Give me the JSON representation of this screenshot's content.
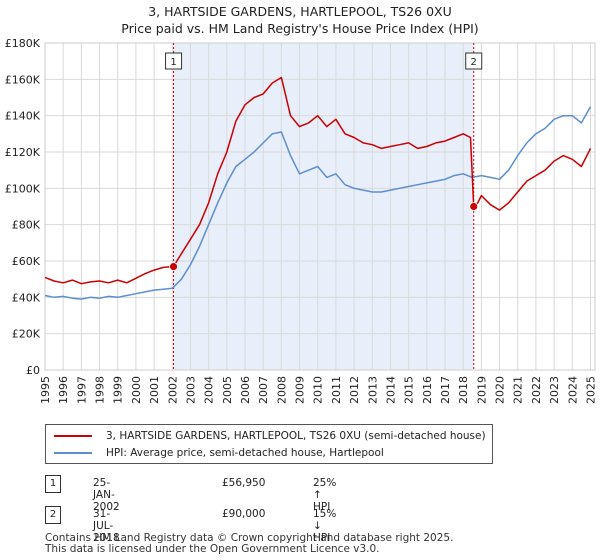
{
  "header": {
    "title": "3, HARTSIDE GARDENS, HARTLEPOOL, TS26 0XU",
    "subtitle": "Price paid vs. HM Land Registry's House Price Index (HPI)"
  },
  "colors": {
    "property": "#cc0000",
    "hpi": "#5b8fcf",
    "shade": "#e8eefa",
    "grid": "#d9d9d9",
    "marker_line": "#cc0000"
  },
  "chart_data": {
    "type": "line",
    "title": "3, HARTSIDE GARDENS, HARTLEPOOL, TS26 0XU",
    "subtitle": "Price paid vs. HM Land Registry's House Price Index (HPI)",
    "xlabel": "",
    "ylabel": "",
    "xlim": [
      1995.0,
      2025.25
    ],
    "ylim": [
      0,
      180000
    ],
    "y_ticks": [
      0,
      20000,
      40000,
      60000,
      80000,
      100000,
      120000,
      140000,
      160000,
      180000
    ],
    "y_tick_labels": [
      "£0",
      "£20K",
      "£40K",
      "£60K",
      "£80K",
      "£100K",
      "£120K",
      "£140K",
      "£160K",
      "£180K"
    ],
    "x_ticks": [
      1995,
      1996,
      1997,
      1998,
      1999,
      2000,
      2001,
      2002,
      2003,
      2004,
      2005,
      2006,
      2007,
      2008,
      2009,
      2010,
      2011,
      2012,
      2013,
      2014,
      2015,
      2016,
      2017,
      2018,
      2019,
      2020,
      2021,
      2022,
      2023,
      2024,
      2025
    ],
    "x_tick_labels": [
      "1995",
      "1996",
      "1997",
      "1998",
      "1999",
      "2000",
      "2001",
      "2002",
      "2003",
      "2004",
      "2005",
      "2006",
      "2007",
      "2008",
      "2009",
      "2010",
      "2011",
      "2012",
      "2013",
      "2014",
      "2015",
      "2016",
      "2017",
      "2018",
      "2019",
      "2020",
      "2021",
      "2022",
      "2023",
      "2024",
      "2025"
    ],
    "grid": true,
    "legend_position": "below",
    "shaded_period": [
      2002.07,
      2018.58
    ],
    "markers": [
      {
        "label": "1",
        "x": 2002.07,
        "y": 56950
      },
      {
        "label": "2",
        "x": 2018.58,
        "y": 90000
      }
    ],
    "series": [
      {
        "name": "3, HARTSIDE GARDENS, HARTLEPOOL, TS26 0XU (semi-detached house)",
        "color": "#cc0000",
        "x": [
          1995.0,
          1995.5,
          1996.0,
          1996.5,
          1997.0,
          1997.5,
          1998.0,
          1998.5,
          1999.0,
          1999.5,
          2000.0,
          2000.5,
          2001.0,
          2001.5,
          2002.07,
          2002.5,
          2003.0,
          2003.5,
          2004.0,
          2004.5,
          2005.0,
          2005.5,
          2006.0,
          2006.5,
          2007.0,
          2007.5,
          2008.0,
          2008.5,
          2009.0,
          2009.5,
          2010.0,
          2010.5,
          2011.0,
          2011.5,
          2012.0,
          2012.5,
          2013.0,
          2013.5,
          2014.0,
          2014.5,
          2015.0,
          2015.5,
          2016.0,
          2016.5,
          2017.0,
          2017.5,
          2018.0,
          2018.4,
          2018.58,
          2018.8,
          2019.0,
          2019.5,
          2020.0,
          2020.5,
          2021.0,
          2021.5,
          2022.0,
          2022.5,
          2023.0,
          2023.5,
          2024.0,
          2024.5,
          2025.0
        ],
        "values": [
          51000,
          49000,
          48000,
          49500,
          47500,
          48500,
          49000,
          48000,
          49500,
          48000,
          50500,
          53000,
          55000,
          56500,
          56950,
          64000,
          72000,
          80000,
          92000,
          108000,
          120000,
          137000,
          146000,
          150000,
          152000,
          158000,
          161000,
          140000,
          134000,
          136000,
          140000,
          134000,
          138000,
          130000,
          128000,
          125000,
          124000,
          122000,
          123000,
          124000,
          125000,
          122000,
          123000,
          125000,
          126000,
          128000,
          130000,
          128000,
          90000,
          92000,
          96000,
          91000,
          88000,
          92000,
          98000,
          104000,
          107000,
          110000,
          115000,
          118000,
          116000,
          112000,
          122000
        ]
      },
      {
        "name": "HPI: Average price, semi-detached house, Hartlepool",
        "color": "#5b8fcf",
        "x": [
          1995.0,
          1995.5,
          1996.0,
          1996.5,
          1997.0,
          1997.5,
          1998.0,
          1998.5,
          1999.0,
          1999.5,
          2000.0,
          2000.5,
          2001.0,
          2001.5,
          2002.0,
          2002.5,
          2003.0,
          2003.5,
          2004.0,
          2004.5,
          2005.0,
          2005.5,
          2006.0,
          2006.5,
          2007.0,
          2007.5,
          2008.0,
          2008.5,
          2009.0,
          2009.5,
          2010.0,
          2010.5,
          2011.0,
          2011.5,
          2012.0,
          2012.5,
          2013.0,
          2013.5,
          2014.0,
          2014.5,
          2015.0,
          2015.5,
          2016.0,
          2016.5,
          2017.0,
          2017.5,
          2018.0,
          2018.5,
          2019.0,
          2019.5,
          2020.0,
          2020.5,
          2021.0,
          2021.5,
          2022.0,
          2022.5,
          2023.0,
          2023.5,
          2024.0,
          2024.5,
          2025.0
        ],
        "values": [
          41000,
          40000,
          40500,
          39500,
          39000,
          40000,
          39500,
          40500,
          40000,
          41000,
          42000,
          43000,
          44000,
          44500,
          45000,
          50000,
          58000,
          68000,
          80000,
          92000,
          103000,
          112000,
          116000,
          120000,
          125000,
          130000,
          131000,
          118000,
          108000,
          110000,
          112000,
          106000,
          108000,
          102000,
          100000,
          99000,
          98000,
          98000,
          99000,
          100000,
          101000,
          102000,
          103000,
          104000,
          105000,
          107000,
          108000,
          106000,
          107000,
          106000,
          105000,
          110000,
          118000,
          125000,
          130000,
          133000,
          138000,
          140000,
          140000,
          136000,
          145000
        ]
      }
    ]
  },
  "legend": {
    "property_label": "3, HARTSIDE GARDENS, HARTLEPOOL, TS26 0XU (semi-detached house)",
    "hpi_label": "HPI: Average price, semi-detached house, Hartlepool"
  },
  "sales": [
    {
      "badge": "1",
      "date": "25-JAN-2002",
      "price": "£56,950",
      "hpi": "25% ↑ HPI"
    },
    {
      "badge": "2",
      "date": "31-JUL-2018",
      "price": "£90,000",
      "hpi": "15% ↓ HPI"
    }
  ],
  "footer": {
    "line1": "Contains HM Land Registry data © Crown copyright and database right 2025.",
    "line2": "This data is licensed under the Open Government Licence v3.0."
  }
}
